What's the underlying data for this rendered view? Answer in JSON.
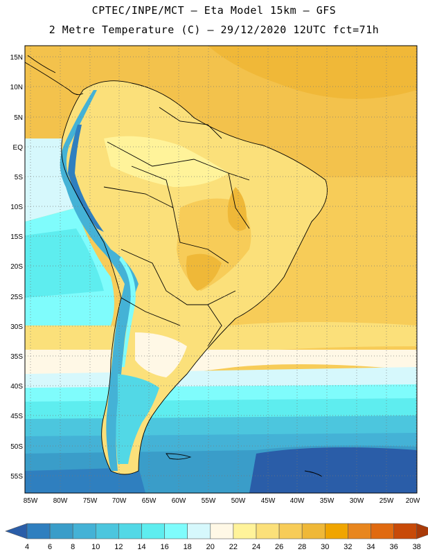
{
  "title_line1": "CPTEC/INPE/MCT –  Eta Model 15km – GFS",
  "title_line2": "2 Metre Temperature (C) – 29/12/2020 12UTC fct=71h",
  "lat_labels": [
    "15N",
    "10N",
    "5N",
    "EQ",
    "5S",
    "10S",
    "15S",
    "20S",
    "25S",
    "30S",
    "35S",
    "40S",
    "45S",
    "50S",
    "55S"
  ],
  "lon_labels": [
    "85W",
    "80W",
    "75W",
    "70W",
    "65W",
    "60W",
    "55W",
    "50W",
    "45W",
    "40W",
    "35W",
    "30W",
    "25W",
    "20W"
  ],
  "colorbar": {
    "levels": [
      "4",
      "6",
      "8",
      "10",
      "12",
      "14",
      "16",
      "18",
      "20",
      "22",
      "24",
      "26",
      "28",
      "30",
      "32",
      "34",
      "36",
      "38"
    ],
    "colors": [
      "#2a5da8",
      "#2f7fbf",
      "#3a9dc9",
      "#44b2d6",
      "#4cc6de",
      "#52d8e6",
      "#5eedef",
      "#7ffcfc",
      "#d6f8fc",
      "#fff8e6",
      "#fff39a",
      "#fbe07a",
      "#f7cc58",
      "#efb838",
      "#f0a500",
      "#e8861e",
      "#e06a10",
      "#c84a08",
      "#a93a08"
    ],
    "underflow_color": "#2a5da8",
    "overflow_color": "#a93a08"
  },
  "grid": "dotted"
}
